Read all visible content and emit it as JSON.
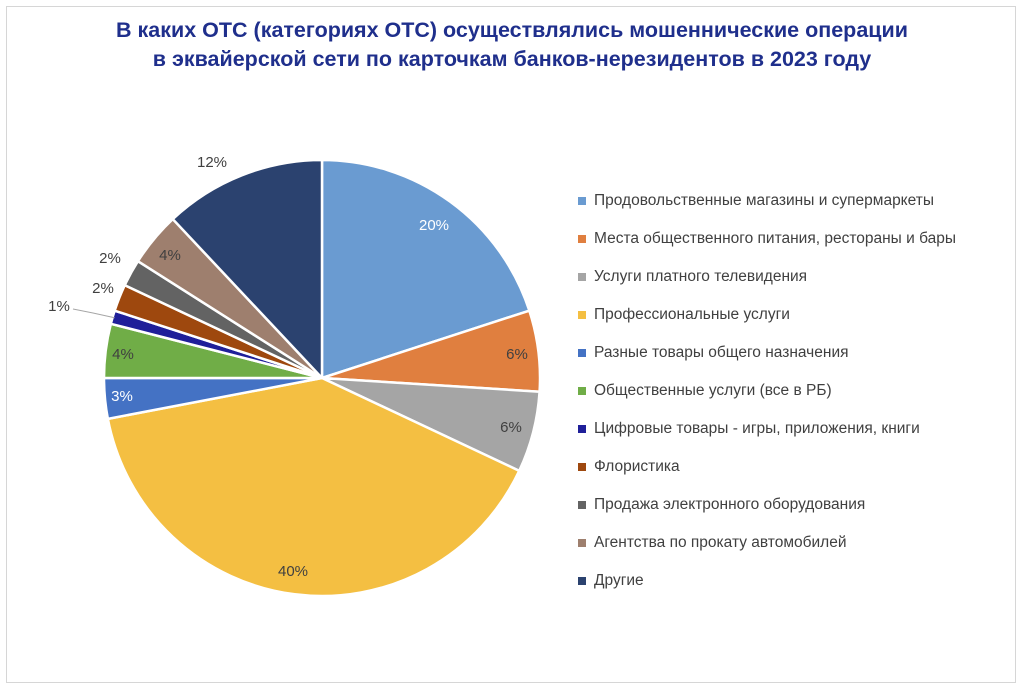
{
  "chart_data": {
    "type": "pie",
    "title_lines": [
      "В каких ОТС (категориях ОТС) осуществлялись мошеннические операции",
      "в эквайерской сети по карточкам банков-нерезидентов в 2023 году"
    ],
    "legend_position": "right",
    "slices": [
      {
        "label": "Продовольственные магазины и супермаркеты",
        "value": 20,
        "value_label": "20%",
        "color": "#6a9bd1",
        "label_color": "#ffffff"
      },
      {
        "label": "Места общественного питания, рестораны и бары",
        "value": 6,
        "value_label": "6%",
        "color": "#e07f3f",
        "label_color": "#404040"
      },
      {
        "label": "Услуги платного телевидения",
        "value": 6,
        "value_label": "6%",
        "color": "#a5a5a5",
        "label_color": "#404040"
      },
      {
        "label": "Профессиональные услуги",
        "value": 40,
        "value_label": "40%",
        "color": "#f4bf42",
        "label_color": "#404040"
      },
      {
        "label": "Разные товары общего назначения",
        "value": 3,
        "value_label": "3%",
        "color": "#4472c4",
        "label_color": "#ffffff"
      },
      {
        "label": "Общественные услуги (все в РБ)",
        "value": 4,
        "value_label": "4%",
        "color": "#70ad47",
        "label_color": "#404040"
      },
      {
        "label": "Цифровые товары - игры, приложения, книги",
        "value": 1,
        "value_label": "1%",
        "color": "#1f1f99",
        "label_color": "#404040"
      },
      {
        "label": "Флористика",
        "value": 2,
        "value_label": "2%",
        "color": "#9e480e",
        "label_color": "#404040"
      },
      {
        "label": "Продажа электронного оборудования",
        "value": 2,
        "value_label": "2%",
        "color": "#636363",
        "label_color": "#404040"
      },
      {
        "label": "Агентства по прокату автомобилей",
        "value": 4,
        "value_label": "4%",
        "color": "#9e7f6e",
        "label_color": "#404040"
      },
      {
        "label": "Другие",
        "value": 12,
        "value_label": "12%",
        "color": "#2b426f",
        "label_color": "#404040"
      }
    ]
  }
}
